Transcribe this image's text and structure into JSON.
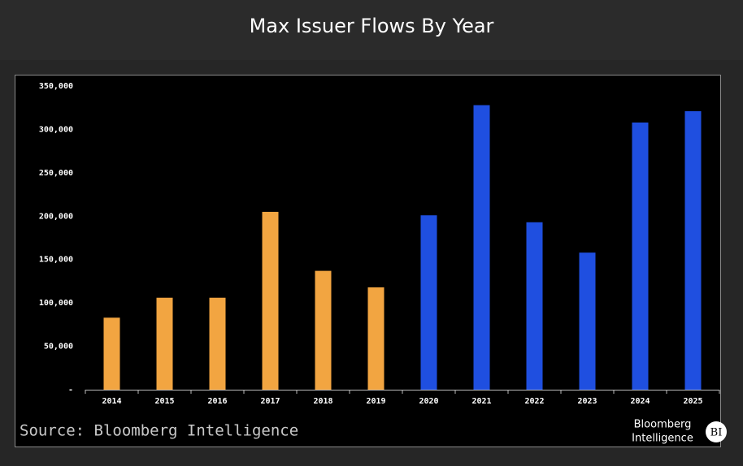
{
  "chart_data": {
    "type": "bar",
    "title": "Max Issuer Flows By Year",
    "categories": [
      "2014",
      "2015",
      "2016",
      "2017",
      "2018",
      "2019",
      "2020",
      "2021",
      "2022",
      "2023",
      "2024",
      "2025"
    ],
    "values": [
      83000,
      106000,
      106000,
      205000,
      137000,
      118000,
      201000,
      328000,
      193000,
      158000,
      308000,
      321000
    ],
    "colors": [
      "#f2a541",
      "#f2a541",
      "#f2a541",
      "#f2a541",
      "#f2a541",
      "#f2a541",
      "#1f4fe0",
      "#1f4fe0",
      "#1f4fe0",
      "#1f4fe0",
      "#1f4fe0",
      "#1f4fe0"
    ],
    "ylim": [
      0,
      350000
    ],
    "yticks": [
      {
        "value": 0,
        "label": "-"
      },
      {
        "value": 50000,
        "label": "50,000"
      },
      {
        "value": 100000,
        "label": "100,000"
      },
      {
        "value": 150000,
        "label": "150,000"
      },
      {
        "value": 200000,
        "label": "200,000"
      },
      {
        "value": 250000,
        "label": "250,000"
      },
      {
        "value": 300000,
        "label": "300,000"
      },
      {
        "value": 350000,
        "label": "350,000"
      }
    ],
    "grid": false,
    "source": "Source: Bloomberg Intelligence",
    "logo": [
      "Bloomberg",
      "Intelligence"
    ],
    "logo_badge": "BI"
  }
}
